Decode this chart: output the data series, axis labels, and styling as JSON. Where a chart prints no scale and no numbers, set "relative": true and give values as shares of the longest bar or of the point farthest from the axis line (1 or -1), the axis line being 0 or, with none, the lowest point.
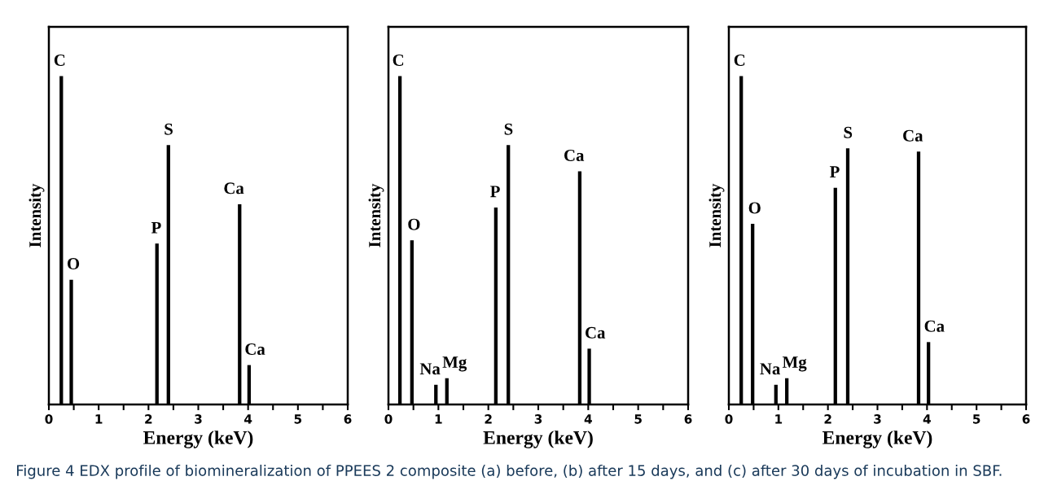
{
  "chart_data": [
    {
      "type": "bar",
      "relative": true,
      "x": [
        0.25,
        0.45,
        2.17,
        2.4,
        3.83,
        4.02
      ],
      "values": [
        1,
        0.38,
        0.49,
        0.79,
        0.61,
        0.12
      ],
      "color": "#000000",
      "xlabel": "Energy (keV)",
      "ylabel": "Intensity",
      "xlim": [
        0,
        6
      ],
      "xticks": [
        0,
        {
          "value": 0.5,
          "label": null
        },
        1,
        {
          "value": 1.5,
          "label": null
        },
        2,
        {
          "value": 2.5,
          "label": null
        },
        3,
        {
          "value": 3.5,
          "label": null
        },
        4,
        {
          "value": 4.5,
          "label": null
        },
        5,
        {
          "value": 5.5,
          "label": null
        },
        6
      ],
      "grid": false,
      "legend": false,
      "annotations": [
        {
          "text": "C",
          "x": 0.25,
          "y": 1
        },
        {
          "text": "O",
          "x": 0.45,
          "y": 0.38
        },
        {
          "text": "P",
          "x": 2.17,
          "y": 0.49
        },
        {
          "text": "S",
          "x": 2.4,
          "y": 0.79
        },
        {
          "text": "Ca",
          "x": 3.83,
          "y": 0.61
        },
        {
          "text": "Ca",
          "x": 4.02,
          "y": 0.12
        },
        "Figure 4 EDX profile of biomineralization of PPEES 2 composite (a) before, (b) after 15 days, and (c) after 30 days of incubation in SBF."
      ]
    },
    {
      "type": "bar",
      "relative": true,
      "x": [
        0.23,
        0.47,
        0.95,
        1.17,
        2.15,
        2.4,
        3.83,
        4.02
      ],
      "values": [
        1,
        0.5,
        0.06,
        0.08,
        0.6,
        0.79,
        0.71,
        0.17
      ],
      "color": "#000000",
      "xlabel": "Energy (keV)",
      "ylabel": "Intensity",
      "xlim": [
        0,
        6
      ],
      "xticks": [
        0,
        {
          "value": 0.5,
          "label": null
        },
        1,
        {
          "value": 1.5,
          "label": null
        },
        2,
        {
          "value": 2.5,
          "label": null
        },
        3,
        {
          "value": 3.5,
          "label": null
        },
        4,
        {
          "value": 4.5,
          "label": null
        },
        5,
        {
          "value": 5.5,
          "label": null
        },
        6
      ],
      "grid": false,
      "legend": false,
      "annotations": [
        {
          "text": "C",
          "x": 0.23,
          "y": 1
        },
        {
          "text": "O",
          "x": 0.47,
          "y": 0.5
        },
        {
          "text": "Na",
          "x": 0.95,
          "y": 0.06
        },
        {
          "text": "Mg",
          "x": 1.17,
          "y": 0.08
        },
        {
          "text": "P",
          "x": 2.15,
          "y": 0.6
        },
        {
          "text": "S",
          "x": 2.4,
          "y": 0.79
        },
        {
          "text": "Ca",
          "x": 3.83,
          "y": 0.71
        },
        {
          "text": "Ca",
          "x": 4.02,
          "y": 0.17
        }
      ]
    },
    {
      "type": "bar",
      "relative": true,
      "x": [
        0.25,
        0.48,
        0.95,
        1.17,
        2.15,
        2.4,
        3.83,
        4.03
      ],
      "values": [
        1,
        0.55,
        0.06,
        0.08,
        0.66,
        0.78,
        0.77,
        0.19
      ],
      "color": "#000000",
      "xlabel": "Energy (keV)",
      "ylabel": "Intensity",
      "xlim": [
        0,
        6
      ],
      "xticks": [
        0,
        {
          "value": 0.5,
          "label": null
        },
        1,
        {
          "value": 1.5,
          "label": null
        },
        2,
        {
          "value": 2.5,
          "label": null
        },
        3,
        {
          "value": 3.5,
          "label": null
        },
        4,
        {
          "value": 4.5,
          "label": null
        },
        5,
        {
          "value": 5.5,
          "label": null
        },
        6
      ],
      "grid": false,
      "legend": false,
      "annotations": [
        {
          "text": "C",
          "x": 0.25,
          "y": 1
        },
        {
          "text": "O",
          "x": 0.48,
          "y": 0.55
        },
        {
          "text": "Na",
          "x": 0.95,
          "y": 0.06
        },
        {
          "text": "Mg",
          "x": 1.17,
          "y": 0.08
        },
        {
          "text": "P",
          "x": 2.15,
          "y": 0.66
        },
        {
          "text": "S",
          "x": 2.4,
          "y": 0.78
        },
        {
          "text": "Ca",
          "x": 3.83,
          "y": 0.77
        },
        {
          "text": "Ca",
          "x": 4.03,
          "y": 0.19
        }
      ]
    }
  ]
}
